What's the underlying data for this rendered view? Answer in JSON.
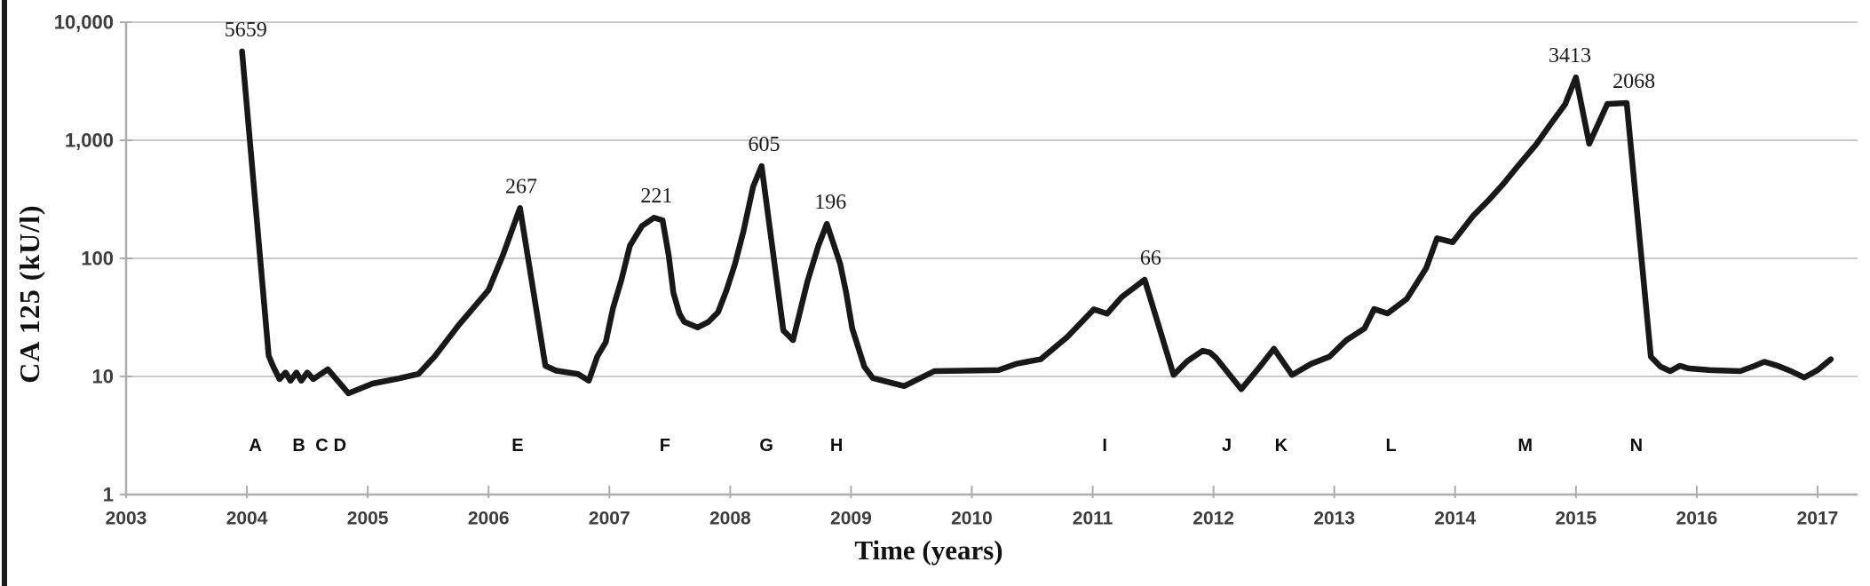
{
  "chart_data": {
    "type": "line",
    "title": "",
    "xlabel": "Time (years)",
    "ylabel": "CA 125 (kU/l)",
    "y_scale": "log",
    "ylim": [
      1,
      10000
    ],
    "xlim": [
      2003,
      2017.25
    ],
    "grid": "horizontal",
    "legend": "none",
    "y_ticks": [
      {
        "label": "10,000",
        "value": 10000
      },
      {
        "label": "1,000",
        "value": 1000
      },
      {
        "label": "100",
        "value": 100
      },
      {
        "label": "10",
        "value": 10
      },
      {
        "label": "1",
        "value": 1
      }
    ],
    "x_ticks": [
      {
        "label": "2003",
        "year": 2003
      },
      {
        "label": "2004",
        "year": 2004
      },
      {
        "label": "2005",
        "year": 2005
      },
      {
        "label": "2006",
        "year": 2006
      },
      {
        "label": "2007",
        "year": 2007
      },
      {
        "label": "2008",
        "year": 2008
      },
      {
        "label": "2009",
        "year": 2009
      },
      {
        "label": "2010",
        "year": 2010
      },
      {
        "label": "2011",
        "year": 2011
      },
      {
        "label": "2012",
        "year": 2012
      },
      {
        "label": "2013",
        "year": 2013
      },
      {
        "label": "2014",
        "year": 2014
      },
      {
        "label": "2015",
        "year": 2015
      },
      {
        "label": "2016",
        "year": 2016
      },
      {
        "label": "2017",
        "year": 2017
      }
    ],
    "series": [
      {
        "name": "CA 125",
        "points": [
          [
            2003.96,
            5659
          ],
          [
            2004.18,
            15
          ],
          [
            2004.22,
            12
          ],
          [
            2004.27,
            9.5
          ],
          [
            2004.32,
            10.8
          ],
          [
            2004.36,
            9.2
          ],
          [
            2004.41,
            10.8
          ],
          [
            2004.45,
            9.2
          ],
          [
            2004.5,
            10.8
          ],
          [
            2004.55,
            9.5
          ],
          [
            2004.67,
            11.5
          ],
          [
            2004.84,
            7.2
          ],
          [
            2005.04,
            8.7
          ],
          [
            2005.25,
            9.6
          ],
          [
            2005.42,
            10.5
          ],
          [
            2005.55,
            14.6
          ],
          [
            2005.75,
            27
          ],
          [
            2006.0,
            54
          ],
          [
            2006.12,
            107
          ],
          [
            2006.26,
            267
          ],
          [
            2006.47,
            12.3
          ],
          [
            2006.56,
            11.2
          ],
          [
            2006.74,
            10.5
          ],
          [
            2006.83,
            9.2
          ],
          [
            2006.9,
            14.8
          ],
          [
            2006.97,
            19.5
          ],
          [
            2007.03,
            38
          ],
          [
            2007.1,
            66
          ],
          [
            2007.17,
            128
          ],
          [
            2007.27,
            188
          ],
          [
            2007.37,
            221
          ],
          [
            2007.44,
            210
          ],
          [
            2007.49,
            107
          ],
          [
            2007.53,
            51
          ],
          [
            2007.58,
            34
          ],
          [
            2007.62,
            29
          ],
          [
            2007.73,
            26
          ],
          [
            2007.82,
            29
          ],
          [
            2007.9,
            35
          ],
          [
            2007.97,
            54
          ],
          [
            2008.04,
            90
          ],
          [
            2008.11,
            170
          ],
          [
            2008.19,
            406
          ],
          [
            2008.26,
            605
          ],
          [
            2008.44,
            24.5
          ],
          [
            2008.52,
            20.3
          ],
          [
            2008.64,
            64
          ],
          [
            2008.73,
            128
          ],
          [
            2008.8,
            196
          ],
          [
            2008.91,
            90
          ],
          [
            2008.96,
            51
          ],
          [
            2009.01,
            25.5
          ],
          [
            2009.11,
            12.1
          ],
          [
            2009.18,
            9.7
          ],
          [
            2009.44,
            8.3
          ],
          [
            2009.69,
            11.1
          ],
          [
            2010.22,
            11.3
          ],
          [
            2010.37,
            12.8
          ],
          [
            2010.57,
            14
          ],
          [
            2010.79,
            21.6
          ],
          [
            2011.01,
            37
          ],
          [
            2011.12,
            34
          ],
          [
            2011.24,
            47
          ],
          [
            2011.43,
            66
          ],
          [
            2011.53,
            30.5
          ],
          [
            2011.67,
            10.3
          ],
          [
            2011.78,
            13.4
          ],
          [
            2011.91,
            16.5
          ],
          [
            2011.97,
            16
          ],
          [
            2012.02,
            14.4
          ],
          [
            2012.23,
            7.8
          ],
          [
            2012.39,
            12.3
          ],
          [
            2012.5,
            17.2
          ],
          [
            2012.65,
            10.3
          ],
          [
            2012.81,
            12.8
          ],
          [
            2012.96,
            14.7
          ],
          [
            2013.1,
            20.3
          ],
          [
            2013.25,
            25.5
          ],
          [
            2013.33,
            37.3
          ],
          [
            2013.44,
            34.2
          ],
          [
            2013.6,
            45.3
          ],
          [
            2013.76,
            82.5
          ],
          [
            2013.85,
            148
          ],
          [
            2013.98,
            137
          ],
          [
            2014.15,
            230
          ],
          [
            2014.28,
            313
          ],
          [
            2014.4,
            429
          ],
          [
            2014.52,
            606
          ],
          [
            2014.67,
            918
          ],
          [
            2014.79,
            1370
          ],
          [
            2014.91,
            2012
          ],
          [
            2015.0,
            3413
          ],
          [
            2015.11,
            935
          ],
          [
            2015.26,
            2030
          ],
          [
            2015.42,
            2068
          ],
          [
            2015.62,
            14.7
          ],
          [
            2015.7,
            12.1
          ],
          [
            2015.78,
            11.1
          ],
          [
            2015.86,
            12.3
          ],
          [
            2015.93,
            11.7
          ],
          [
            2016.11,
            11.3
          ],
          [
            2016.36,
            11.1
          ],
          [
            2016.48,
            12.3
          ],
          [
            2016.56,
            13.3
          ],
          [
            2016.67,
            12.3
          ],
          [
            2016.78,
            11.1
          ],
          [
            2016.89,
            9.8
          ],
          [
            2017.0,
            11.3
          ],
          [
            2017.11,
            14
          ]
        ]
      }
    ],
    "peak_labels": [
      {
        "label": "5659",
        "year": 2003.99,
        "value": 5659
      },
      {
        "label": "267",
        "year": 2006.27,
        "value": 267
      },
      {
        "label": "221",
        "year": 2007.39,
        "value": 221
      },
      {
        "label": "605",
        "year": 2008.28,
        "value": 605
      },
      {
        "label": "196",
        "year": 2008.83,
        "value": 196
      },
      {
        "label": "66",
        "year": 2011.48,
        "value": 66
      },
      {
        "label": "3413",
        "year": 2014.95,
        "value": 3413
      },
      {
        "label": "2068",
        "year": 2015.48,
        "value": 2068
      }
    ],
    "event_letters": [
      {
        "label": "A",
        "year": 2004.07
      },
      {
        "label": "B",
        "year": 2004.43
      },
      {
        "label": "C",
        "year": 2004.62
      },
      {
        "label": "D",
        "year": 2004.77
      },
      {
        "label": "E",
        "year": 2006.24
      },
      {
        "label": "F",
        "year": 2007.46
      },
      {
        "label": "G",
        "year": 2008.3
      },
      {
        "label": "H",
        "year": 2008.88
      },
      {
        "label": "I",
        "year": 2011.1
      },
      {
        "label": "J",
        "year": 2012.11
      },
      {
        "label": "K",
        "year": 2012.56
      },
      {
        "label": "L",
        "year": 2013.47
      },
      {
        "label": "M",
        "year": 2014.58
      },
      {
        "label": "N",
        "year": 2015.5
      }
    ]
  },
  "style": {
    "line_color": "#181818",
    "grid_color": "#c9c9c9",
    "axis_color": "#adadad",
    "tick_label_color": "#3d3d3d",
    "peak_label_color": "#1a1a1a",
    "letter_color": "#0d0d0d",
    "border_color": "#1b1b1b"
  }
}
